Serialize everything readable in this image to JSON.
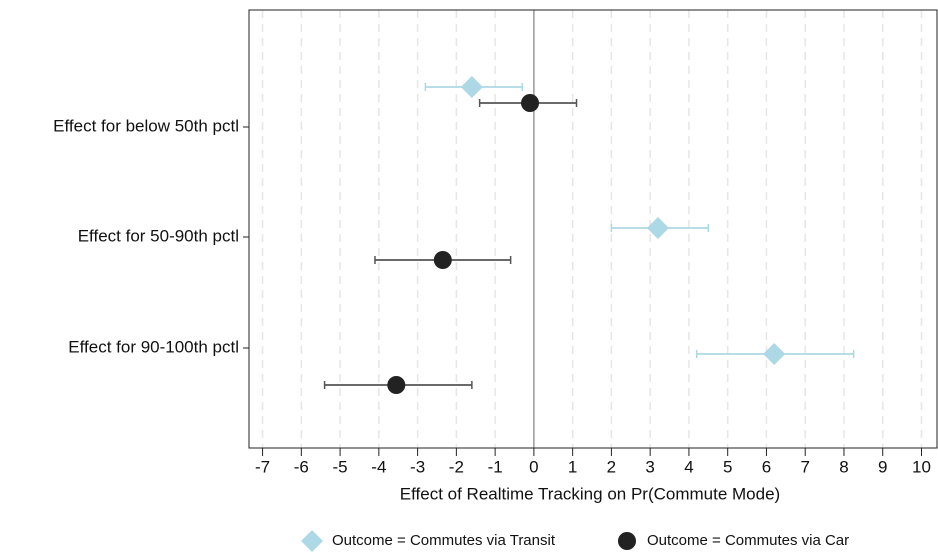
{
  "chart_data": {
    "type": "coefplot",
    "xlabel": "Effect of Realtime Tracking on Pr(Commute Mode)",
    "categories": [
      "Effect for below 50th pctl",
      "Effect for 50-90th pctl",
      "Effect for 90-100th pctl"
    ],
    "series": [
      {
        "name": "Outcome = Commutes via Transit",
        "color": "#add8e6",
        "marker": "diamond",
        "values": [
          -1.6,
          3.2,
          6.2
        ],
        "ci_low": [
          -2.8,
          2.0,
          4.2
        ],
        "ci_high": [
          -0.3,
          4.5,
          8.25
        ]
      },
      {
        "name": "Outcome = Commutes via Car",
        "color": "#222222",
        "marker": "circle",
        "values": [
          -0.1,
          -2.35,
          -3.55
        ],
        "ci_low": [
          -1.4,
          -4.1,
          -5.4
        ],
        "ci_high": [
          1.1,
          -0.6,
          -1.6
        ]
      }
    ],
    "xlim": [
      -7.35,
      10.4
    ],
    "xticks": [
      -7,
      -6,
      -5,
      -4,
      -3,
      -2,
      -1,
      0,
      1,
      2,
      3,
      4,
      5,
      6,
      7,
      8,
      9,
      10
    ],
    "grid": true
  }
}
